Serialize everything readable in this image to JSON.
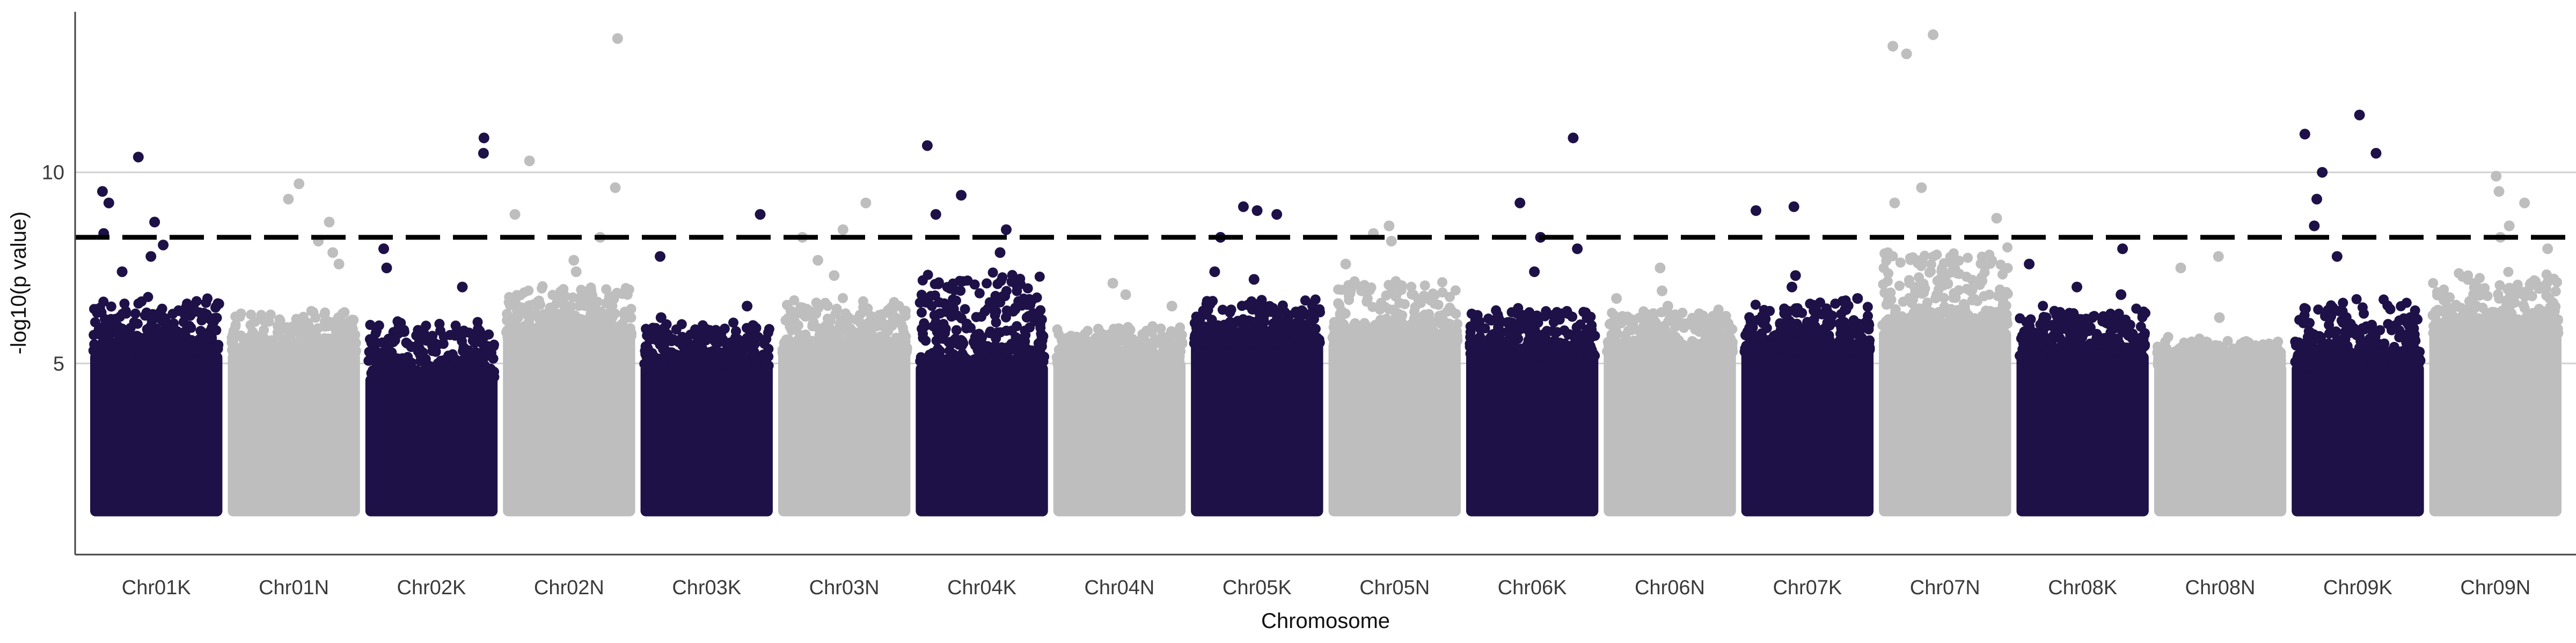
{
  "chart_data": {
    "type": "scatter",
    "title": "",
    "xlabel": "Chromosome",
    "ylabel": "-log10(p value)",
    "ylim": [
      0,
      14.2
    ],
    "y_ticks": [
      5,
      10
    ],
    "grid": "horizontal",
    "legend": "none",
    "threshold": 8.3,
    "colors": {
      "dark": "#1e1147",
      "light": "#bebebe"
    },
    "categories": [
      "Chr01K",
      "Chr01N",
      "Chr02K",
      "Chr02N",
      "Chr03K",
      "Chr03N",
      "Chr04K",
      "Chr04N",
      "Chr05K",
      "Chr05N",
      "Chr06K",
      "Chr06N",
      "Chr07K",
      "Chr07N",
      "Chr08K",
      "Chr08N",
      "Chr09K",
      "Chr09N"
    ],
    "chromosomes": [
      {
        "name": "Chr01K",
        "color": "dark",
        "base_max": 5.3,
        "cloud": 6.7,
        "peaks": [
          8.7,
          10.4,
          9.5,
          9.2,
          8.4,
          8.1,
          7.8,
          7.4
        ]
      },
      {
        "name": "Chr01N",
        "color": "light",
        "base_max": 5.3,
        "cloud": 6.3,
        "peaks": [
          9.7,
          9.3,
          8.7,
          8.2,
          7.9,
          7.6
        ]
      },
      {
        "name": "Chr02K",
        "color": "dark",
        "base_max": 4.7,
        "cloud": 6.0,
        "peaks": [
          10.9,
          10.5,
          8.0,
          7.5,
          7.0
        ]
      },
      {
        "name": "Chr02N",
        "color": "light",
        "base_max": 5.8,
        "cloud": 7.0,
        "peaks": [
          13.5,
          10.3,
          9.6,
          8.9,
          8.3,
          7.7,
          7.4
        ]
      },
      {
        "name": "Chr03K",
        "color": "dark",
        "base_max": 5.0,
        "cloud": 6.0,
        "peaks": [
          8.9,
          7.8,
          6.5,
          6.2
        ]
      },
      {
        "name": "Chr03N",
        "color": "light",
        "base_max": 5.4,
        "cloud": 6.6,
        "peaks": [
          9.2,
          8.5,
          8.3,
          7.7,
          7.3
        ]
      },
      {
        "name": "Chr04K",
        "color": "dark",
        "base_max": 5.0,
        "cloud": 7.4,
        "peaks": [
          10.7,
          9.4,
          8.9,
          8.5,
          7.9
        ]
      },
      {
        "name": "Chr04N",
        "color": "light",
        "base_max": 5.1,
        "cloud": 5.9,
        "peaks": [
          7.1,
          6.8,
          6.5
        ]
      },
      {
        "name": "Chr05K",
        "color": "dark",
        "base_max": 5.6,
        "cloud": 6.6,
        "peaks": [
          9.1,
          9.0,
          8.9,
          8.3,
          7.4,
          7.2
        ]
      },
      {
        "name": "Chr05N",
        "color": "light",
        "base_max": 5.6,
        "cloud": 7.1,
        "peaks": [
          8.6,
          8.4,
          8.2,
          7.6
        ]
      },
      {
        "name": "Chr06K",
        "color": "dark",
        "base_max": 5.3,
        "cloud": 6.4,
        "peaks": [
          10.9,
          9.2,
          8.3,
          8.0,
          7.4
        ]
      },
      {
        "name": "Chr06N",
        "color": "light",
        "base_max": 5.4,
        "cloud": 6.3,
        "peaks": [
          7.5,
          6.9,
          6.7,
          6.5
        ]
      },
      {
        "name": "Chr07K",
        "color": "dark",
        "base_max": 5.4,
        "cloud": 6.6,
        "peaks": [
          9.1,
          9.0,
          7.3,
          7.0,
          6.7
        ]
      },
      {
        "name": "Chr07N",
        "color": "light",
        "base_max": 5.9,
        "cloud": 8.0,
        "peaks": [
          13.6,
          13.3,
          13.1,
          9.6,
          9.2,
          8.8
        ]
      },
      {
        "name": "Chr08K",
        "color": "dark",
        "base_max": 5.3,
        "cloud": 6.4,
        "peaks": [
          8.0,
          7.6,
          7.0,
          6.8
        ]
      },
      {
        "name": "Chr08N",
        "color": "light",
        "base_max": 5.0,
        "cloud": 5.6,
        "peaks": [
          7.8,
          7.5,
          6.2
        ]
      },
      {
        "name": "Chr09K",
        "color": "dark",
        "base_max": 5.0,
        "cloud": 6.6,
        "peaks": [
          11.5,
          11.0,
          10.5,
          10.0,
          9.3,
          8.6,
          7.8
        ]
      },
      {
        "name": "Chr09N",
        "color": "light",
        "base_max": 5.9,
        "cloud": 7.3,
        "peaks": [
          9.9,
          9.5,
          9.2,
          8.6,
          8.3,
          8.0
        ]
      }
    ]
  }
}
